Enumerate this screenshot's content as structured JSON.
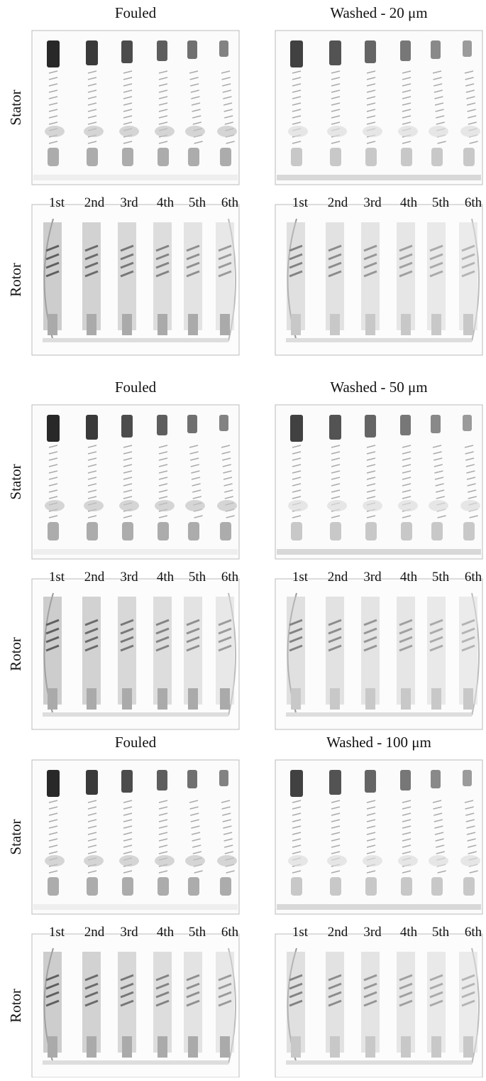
{
  "groups": [
    {
      "columns": [
        {
          "title": "Fouled",
          "stages": [
            "1st",
            "2nd",
            "3rd",
            "4th",
            "5th",
            "6th"
          ]
        },
        {
          "title": "Washed - 20 μm",
          "stages": [
            "1st",
            "2nd",
            "3rd",
            "4th",
            "5th",
            "6th"
          ]
        }
      ],
      "rows": [
        "Stator",
        "Rotor"
      ]
    },
    {
      "columns": [
        {
          "title": "Fouled",
          "stages": [
            "1st",
            "2nd",
            "3rd",
            "4th",
            "5th",
            "6th"
          ]
        },
        {
          "title": "Washed - 50 μm",
          "stages": [
            "1st",
            "2nd",
            "3rd",
            "4th",
            "5th",
            "6th"
          ]
        }
      ],
      "rows": [
        "Stator",
        "Rotor"
      ]
    },
    {
      "columns": [
        {
          "title": "Fouled",
          "stages": [
            "1st",
            "2nd",
            "3rd",
            "4th",
            "5th",
            "6th"
          ]
        },
        {
          "title": "Washed - 100 μm",
          "stages": [
            "1st",
            "2nd",
            "3rd",
            "4th",
            "5th",
            "6th"
          ]
        }
      ],
      "rows": [
        "Stator",
        "Rotor"
      ]
    }
  ]
}
